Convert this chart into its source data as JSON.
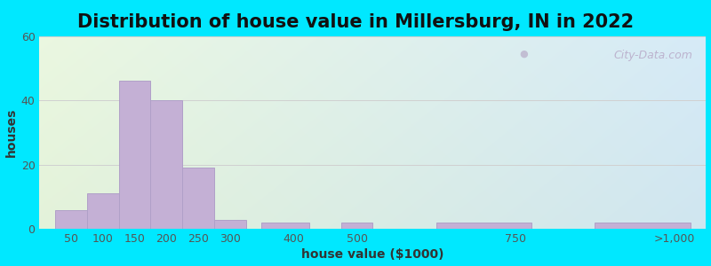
{
  "title": "Distribution of house value in Millersburg, IN in 2022",
  "xlabel": "house value ($1000)",
  "ylabel": "houses",
  "bar_color": "#c4b0d5",
  "bar_edgecolor": "#b0a0c8",
  "background_outer": "#00e8ff",
  "ylim": [
    0,
    60
  ],
  "yticks": [
    0,
    20,
    40,
    60
  ],
  "grid_color": "#d0d0d0",
  "watermark_text": "City-Data.com",
  "title_fontsize": 15,
  "label_fontsize": 10,
  "tick_fontsize": 9,
  "bar_left_edges": [
    25,
    75,
    125,
    175,
    225,
    275,
    350,
    475,
    625,
    875
  ],
  "bar_right_edges": [
    75,
    125,
    175,
    225,
    275,
    325,
    425,
    525,
    775,
    1025
  ],
  "bar_heights": [
    6,
    11,
    46,
    40,
    19,
    3,
    2,
    2,
    2,
    2
  ],
  "xtick_positions": [
    50,
    100,
    150,
    200,
    250,
    300,
    400,
    500,
    750,
    1000
  ],
  "xtick_labels": [
    "50",
    "100",
    "150",
    "200",
    "250",
    "300",
    "400",
    "500",
    "750",
    ">1,000"
  ]
}
